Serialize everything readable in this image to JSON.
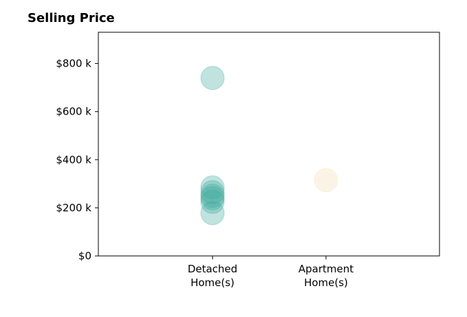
{
  "chart_data": {
    "type": "scatter",
    "title": "Selling Price",
    "xlabel": "",
    "ylabel": "",
    "categories": [
      [
        "Detached",
        "Home(s)"
      ],
      [
        "Apartment",
        "Home(s)"
      ]
    ],
    "ylim": [
      0,
      930000
    ],
    "yticks": [
      {
        "value": 0,
        "label": "$0"
      },
      {
        "value": 200000,
        "label": "$200 k"
      },
      {
        "value": 400000,
        "label": "$400 k"
      },
      {
        "value": 600000,
        "label": "$600 k"
      },
      {
        "value": 800000,
        "label": "$800 k"
      }
    ],
    "grid": false,
    "series": [
      {
        "category": 0,
        "color": "#3aa99b",
        "values": [
          740000,
          285000,
          265000,
          250000,
          240000,
          225000,
          178000
        ]
      },
      {
        "category": 1,
        "color": "#f3dcb0",
        "values": [
          315000
        ]
      }
    ]
  }
}
